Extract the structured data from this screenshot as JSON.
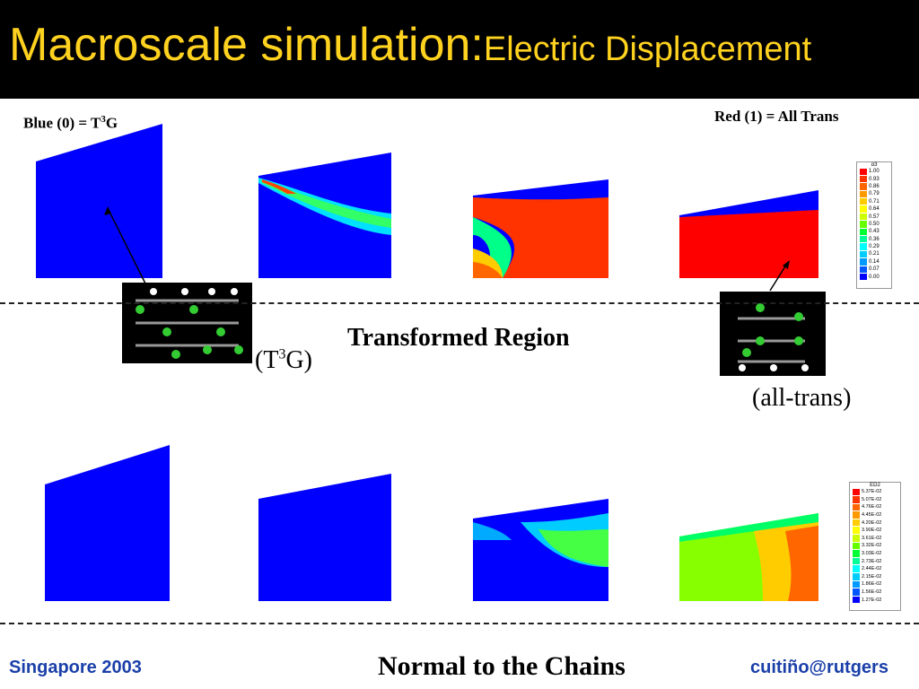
{
  "title": {
    "main": "Macroscale simulation:",
    "sub": "Electric Displacement"
  },
  "labels": {
    "blue": "Blue (0) = T",
    "blue_sup": "3",
    "blue_tail": "G",
    "red": "Red (1) = All Trans",
    "transformed": "Transformed Region",
    "t3g_open": "(T",
    "t3g_sup": "3",
    "t3g_close": "G)",
    "all_trans": "(all-trans)",
    "normal": "Normal to the Chains"
  },
  "legend_top": {
    "title": "α3",
    "values": [
      "1.00",
      "0.93",
      "0.86",
      "0.79",
      "0.71",
      "0.64",
      "0.57",
      "0.50",
      "0.43",
      "0.36",
      "0.29",
      "0.21",
      "0.14",
      "0.07",
      "0.00"
    ]
  },
  "legend_bottom": {
    "title": "ED2",
    "values": [
      "5.37E-02",
      "5.07E-02",
      "4.76E-02",
      "4.45E-02",
      "4.20E-02",
      "3.90E-02",
      "3.61E-02",
      "3.32E-02",
      "3.03E-02",
      "2.73E-02",
      "2.44E-02",
      "2.15E-02",
      "1.86E-02",
      "1.56E-02",
      "1.27E-02"
    ]
  },
  "legend_colors": [
    "#ff0000",
    "#ff3300",
    "#ff6600",
    "#ff9900",
    "#ffcc00",
    "#ffff00",
    "#ccff00",
    "#66ff00",
    "#00ff33",
    "#00ff99",
    "#00ffff",
    "#00ccff",
    "#0099ff",
    "#0055ff",
    "#0000ff"
  ],
  "footer": {
    "left": "Singapore 2003",
    "right": "cuitiño@rutgers"
  }
}
